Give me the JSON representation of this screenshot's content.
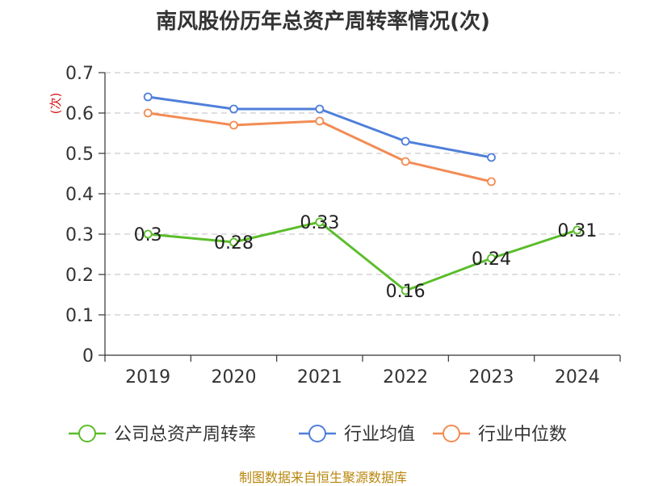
{
  "chart_data": {
    "type": "line",
    "title": "南风股份历年总资产周转率情况(次)",
    "ylabel": "(次)",
    "xlabel": "",
    "categories": [
      "2019",
      "2020",
      "2021",
      "2022",
      "2023",
      "2024"
    ],
    "ylim": [
      0,
      0.7
    ],
    "yticks": [
      "0",
      "0.1",
      "0.2",
      "0.3",
      "0.4",
      "0.5",
      "0.6",
      "0.7"
    ],
    "grid": true,
    "legend_position": "bottom",
    "series": [
      {
        "name": "公司总资产周转率",
        "color": "#5bbd2b",
        "values": [
          0.3,
          0.28,
          0.33,
          0.16,
          0.24,
          0.31
        ],
        "labels": [
          "0.3",
          "0.28",
          "0.33",
          "0.16",
          "0.24",
          "0.31"
        ]
      },
      {
        "name": "行业均值",
        "color": "#4f7fd9",
        "values": [
          0.64,
          0.61,
          0.61,
          0.53,
          0.49,
          null
        ]
      },
      {
        "name": "行业中位数",
        "color": "#f28c55",
        "values": [
          0.6,
          0.57,
          0.58,
          0.48,
          0.43,
          null
        ]
      }
    ]
  },
  "source": "制图数据来自恒生聚源数据库"
}
